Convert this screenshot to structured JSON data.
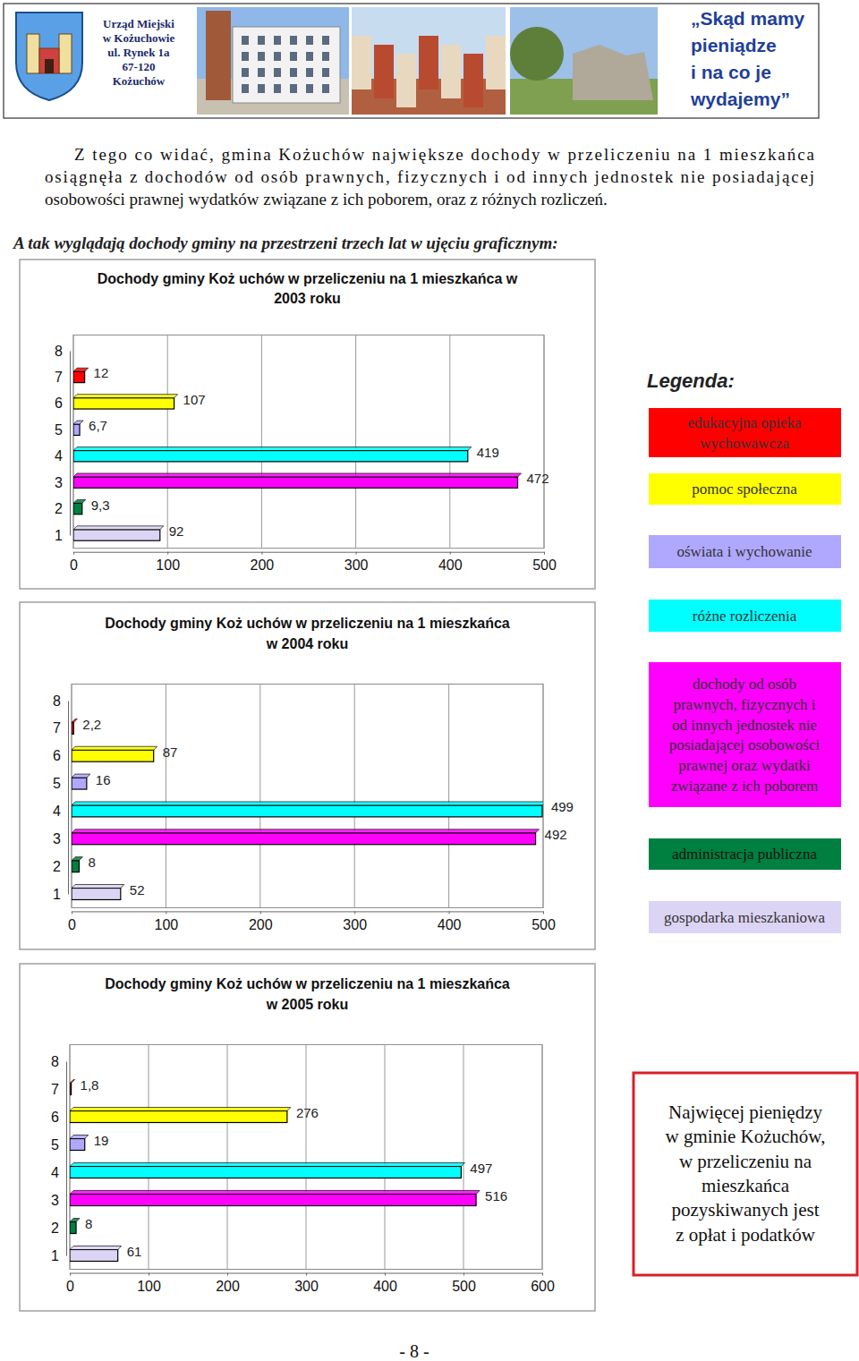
{
  "header": {
    "office": [
      "Urząd Miejski",
      "w Kożuchowie",
      "ul. Rynek 1a",
      "67-120",
      "Kożuchów"
    ],
    "title": [
      "„Skąd mamy",
      "pieniądze",
      "i na co je",
      "wydajemy”"
    ]
  },
  "intro": {
    "paragraph": [
      "Z tego co widać, gmina Kożuchów największe dochody w przeliczeniu na 1 mieszkańca",
      "osiągnęła z dochodów od osób prawnych, fizycznych i od innych jednostek nie posiadającej",
      "osobowości prawnej wydatków związane z ich poborem, oraz z różnych rozliczeń."
    ],
    "caption": "A tak wyglądają dochody gminy na przestrzeni trzech lat w ujęciu graficznym:"
  },
  "chart_data": [
    {
      "type": "bar",
      "orientation": "horizontal",
      "title": [
        "Dochody gminy Koż uchów w przeliczeniu na 1 mieszkańca w",
        "2003 roku"
      ],
      "categories": [
        "1",
        "2",
        "3",
        "4",
        "5",
        "6",
        "7",
        "8"
      ],
      "values": [
        92,
        9.3,
        472,
        419,
        6.7,
        107,
        12,
        null
      ],
      "value_labels": [
        "92",
        "9,3",
        "472",
        "419",
        "6,7",
        "107",
        "12",
        null
      ],
      "colors": [
        "#dcd4f4",
        "#008040",
        "#ff00ff",
        "#00ffff",
        "#b0a8ff",
        "#ffff00",
        "#ff0000",
        null
      ],
      "xlim": [
        0,
        500
      ],
      "xticks": [
        0,
        100,
        200,
        300,
        400,
        500
      ],
      "data_labels": true,
      "grid": true
    },
    {
      "type": "bar",
      "orientation": "horizontal",
      "title": [
        "Dochody gminy Koż uchów w przeliczeniu na 1 mieszkańca",
        "w 2004 roku"
      ],
      "categories": [
        "1",
        "2",
        "3",
        "4",
        "5",
        "6",
        "7",
        "8"
      ],
      "values": [
        52,
        8,
        492,
        499,
        16,
        87,
        2.2,
        null
      ],
      "value_labels": [
        "52",
        "8",
        "492",
        "499",
        "16",
        "87",
        "2,2",
        null
      ],
      "colors": [
        "#dcd4f4",
        "#008040",
        "#ff00ff",
        "#00ffff",
        "#b0a8ff",
        "#ffff00",
        "#ff0000",
        null
      ],
      "xlim": [
        0,
        500
      ],
      "xticks": [
        0,
        100,
        200,
        300,
        400,
        500
      ],
      "data_labels": true,
      "grid": true
    },
    {
      "type": "bar",
      "orientation": "horizontal",
      "title": [
        "Dochody gminy Koż uchów w przeliczeniu na 1 mieszkańca",
        "w 2005 roku"
      ],
      "categories": [
        "1",
        "2",
        "3",
        "4",
        "5",
        "6",
        "7",
        "8"
      ],
      "values": [
        61,
        8,
        516,
        497,
        19,
        276,
        1.8,
        null
      ],
      "value_labels": [
        "61",
        "8",
        "516",
        "497",
        "19",
        "276",
        "1,8",
        null
      ],
      "colors": [
        "#dcd4f4",
        "#008040",
        "#ff00ff",
        "#00ffff",
        "#b0a8ff",
        "#ffff00",
        "#ff0000",
        null
      ],
      "xlim": [
        0,
        600
      ],
      "xticks": [
        0,
        100,
        200,
        300,
        400,
        500,
        600
      ],
      "data_labels": true,
      "grid": true
    }
  ],
  "legend": {
    "title": "Legenda:",
    "items": [
      {
        "label": [
          "edukacyjna opieka",
          "wychowawcza"
        ],
        "color": "#ff0000"
      },
      {
        "label": [
          "pomoc społeczna"
        ],
        "color": "#ffff00"
      },
      {
        "label": [
          "oświata i wychowanie"
        ],
        "color": "#b0a8ff"
      },
      {
        "label": [
          "różne rozliczenia"
        ],
        "color": "#00ffff"
      },
      {
        "label": [
          "dochody od osób",
          "prawnych, fizycznych i",
          "od innych jednostek nie",
          "posiadającej osobowości",
          "prawnej oraz wydatki",
          "związane z ich poborem"
        ],
        "color": "#ff00ff"
      },
      {
        "label": [
          "administracja publiczna"
        ],
        "color": "#008040"
      },
      {
        "label": [
          "gospodarka mieszkaniowa"
        ],
        "color": "#dcd4f4"
      }
    ]
  },
  "note": [
    "Najwięcej pieniędzy",
    "w gminie Kożuchów,",
    "w przeliczeniu na",
    "mieszkańca",
    "pozyskiwanych jest",
    "z opłat i podatków"
  ],
  "page_number": "- 8 -"
}
